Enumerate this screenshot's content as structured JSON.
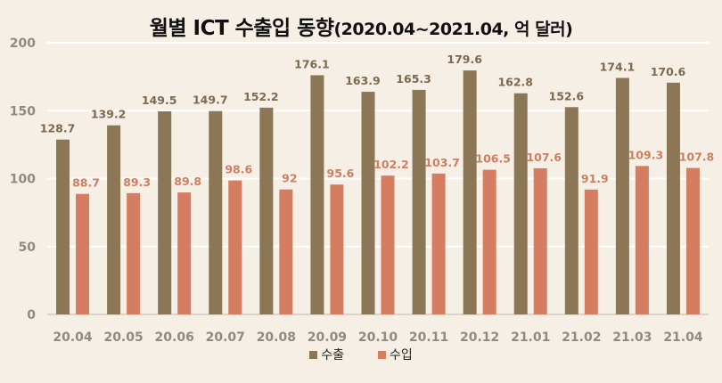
{
  "chart_data": {
    "type": "bar",
    "title": "월별 ICT 수출입 동향",
    "subtitle": "(2020.04~2021.04, 억 달러)",
    "categories": [
      "20.04",
      "20.05",
      "20.06",
      "20.07",
      "20.08",
      "20.09",
      "20.10",
      "20.11",
      "20.12",
      "21.01",
      "21.02",
      "21.03",
      "21.04"
    ],
    "series": [
      {
        "name": "수출",
        "color": "#8b7755",
        "values": [
          128.7,
          139.2,
          149.5,
          149.7,
          152.2,
          176.1,
          163.9,
          165.3,
          179.6,
          162.8,
          152.6,
          174.1,
          170.6
        ],
        "labels": [
          "128.7",
          "139.2",
          "149.5",
          "149.7",
          "152.2",
          "176.1",
          "163.9",
          "165.3",
          "179.6",
          "162.8",
          "152.6",
          "174.1",
          "170.6"
        ]
      },
      {
        "name": "수입",
        "color": "#d47d61",
        "values": [
          88.7,
          89.3,
          89.8,
          98.6,
          92,
          95.6,
          102.2,
          103.7,
          106.5,
          107.6,
          91.9,
          109.3,
          107.8
        ],
        "labels": [
          "88.7",
          "89.3",
          "89.8",
          "98.6",
          "92",
          "95.6",
          "102.2",
          "103.7",
          "106.5",
          "107.6",
          "91.9",
          "109.3",
          "107.8"
        ]
      }
    ],
    "yticks": [
      "0",
      "50",
      "100",
      "150",
      "200"
    ],
    "ylim": [
      0,
      200
    ],
    "xlabel": "",
    "ylabel": "",
    "grid": true,
    "legend": "bottom"
  }
}
